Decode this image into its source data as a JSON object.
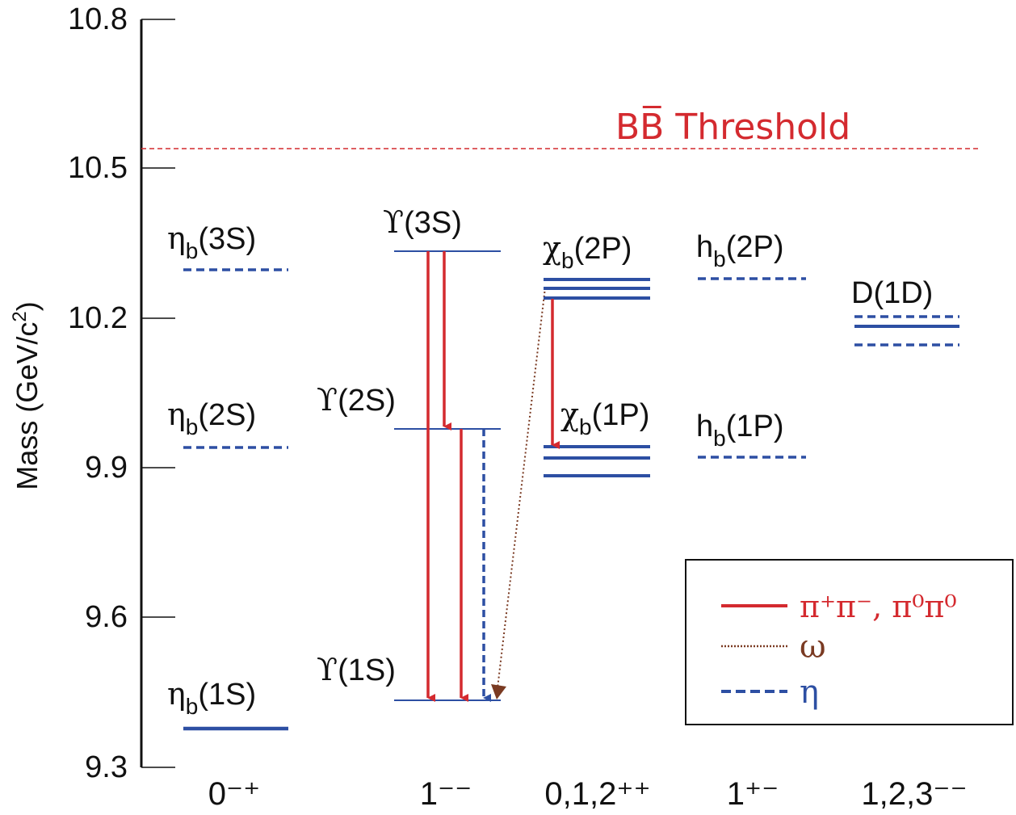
{
  "axis": {
    "label": "Mass (GeV/c",
    "label_sup": "2",
    "label_end": ")",
    "ticks": [
      "10.8",
      "10.5",
      "10.2",
      "9.9",
      "9.6",
      "9.3"
    ]
  },
  "threshold": {
    "label": "BB̅ Threshold",
    "color": "#d42a2f"
  },
  "columns": [
    "0⁻⁺",
    "1⁻⁻",
    "0,1,2⁺⁺",
    "1⁺⁻",
    "1,2,3⁻⁻"
  ],
  "states": {
    "eta_3s": {
      "sym": "η",
      "sub": "b",
      "tail": "(3S)"
    },
    "eta_2s": {
      "sym": "η",
      "sub": "b",
      "tail": "(2S)"
    },
    "eta_1s": {
      "sym": "η",
      "sub": "b",
      "tail": "(1S)"
    },
    "ups_3s": {
      "sym": "ϒ",
      "tail": "(3S)"
    },
    "ups_2s": {
      "sym": "ϒ",
      "tail": "(2S)"
    },
    "ups_1s": {
      "sym": "ϒ",
      "tail": "(1S)"
    },
    "chi_2p": {
      "sym": "χ",
      "sub": "b",
      "tail": "(2P)"
    },
    "chi_1p": {
      "sym": "χ",
      "sub": "b",
      "tail": "(1P)"
    },
    "hb_2p": {
      "sym": "h",
      "sub": "b",
      "tail": "(2P)"
    },
    "hb_1p": {
      "sym": "h",
      "sub": "b",
      "tail": "(1P)"
    },
    "d_1d": {
      "sym": "D",
      "tail": "(1D)"
    }
  },
  "legend": {
    "pipi": "π⁺π⁻, π⁰π⁰",
    "omega": "ω",
    "eta": "η"
  },
  "colors": {
    "level": "#2d4fa3",
    "pipi": "#d42a2f",
    "omega": "#7a3a22",
    "eta": "#2d4fa3",
    "axis": "#111111"
  }
}
